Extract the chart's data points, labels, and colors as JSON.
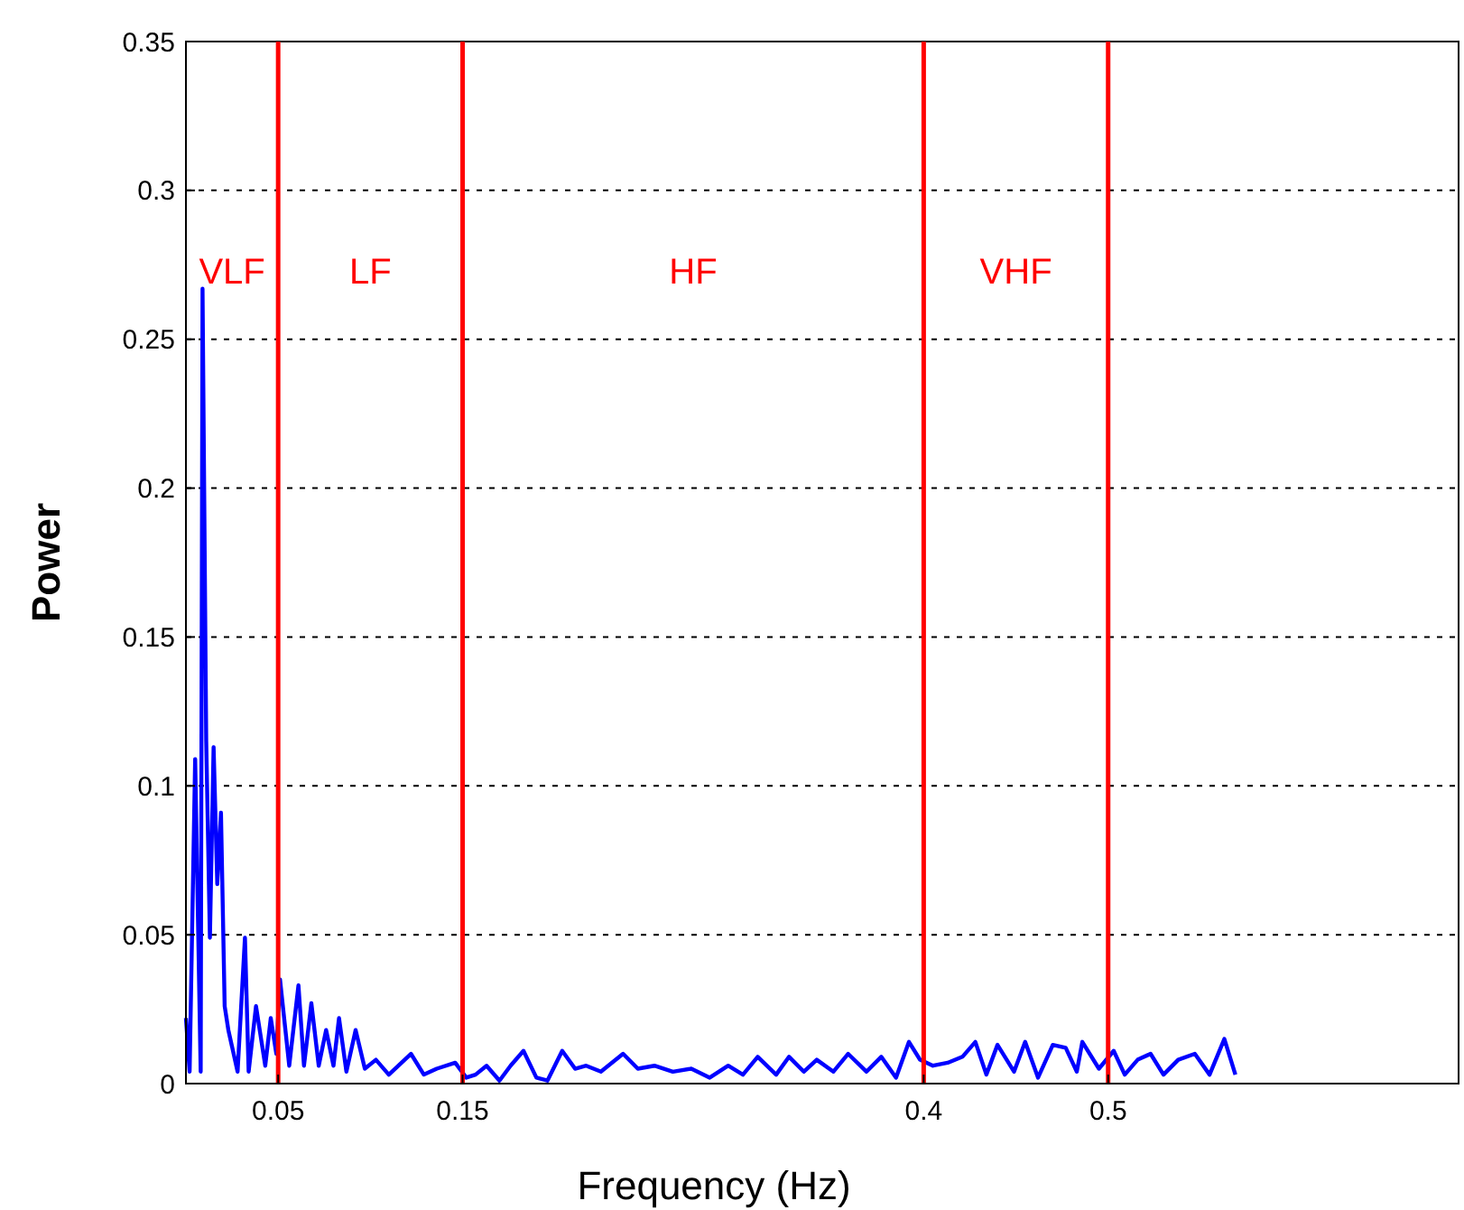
{
  "chart_data": {
    "type": "line",
    "xlabel": "Frequency (Hz)",
    "ylabel": "Power",
    "xlim": [
      0,
      0.69
    ],
    "ylim": [
      0,
      0.35
    ],
    "xticks": [
      {
        "value": 0,
        "label": null
      },
      0.05,
      0.15,
      0.4,
      0.5
    ],
    "yticks": [
      0,
      0.05,
      0.1,
      0.15,
      0.2,
      0.25,
      0.3,
      0.35
    ],
    "grid": "y",
    "line_style": "solid",
    "ref_lines": [
      {
        "axis": "x",
        "value": 0.05,
        "color": "#ff0000",
        "label": "VLF"
      },
      {
        "axis": "x",
        "value": 0.15,
        "color": "#ff0000",
        "label": "LF"
      },
      {
        "axis": "x",
        "value": 0.4,
        "color": "#ff0000",
        "label": "HF"
      },
      {
        "axis": "x",
        "value": 0.5,
        "color": "#ff0000",
        "label": "VHF"
      }
    ],
    "series": [
      {
        "color": "#0000ff",
        "x": [
          0,
          0.002,
          0.005,
          0.008,
          0.009,
          0.011,
          0.013,
          0.015,
          0.017,
          0.019,
          0.021,
          0.023,
          0.028,
          0.032,
          0.034,
          0.038,
          0.043,
          0.046,
          0.049,
          0.051,
          0.056,
          0.061,
          0.064,
          0.068,
          0.072,
          0.076,
          0.08,
          0.083,
          0.087,
          0.092,
          0.097,
          0.103,
          0.11,
          0.122,
          0.129,
          0.136,
          0.146,
          0.152,
          0.157,
          0.163,
          0.17,
          0.176,
          0.183,
          0.19,
          0.196,
          0.204,
          0.211,
          0.217,
          0.225,
          0.237,
          0.245,
          0.254,
          0.264,
          0.274,
          0.284,
          0.294,
          0.302,
          0.31,
          0.32,
          0.327,
          0.335,
          0.342,
          0.351,
          0.359,
          0.369,
          0.377,
          0.385,
          0.392,
          0.398,
          0.405,
          0.413,
          0.421,
          0.428,
          0.434,
          0.44,
          0.449,
          0.455,
          0.462,
          0.47,
          0.477,
          0.483,
          0.486,
          0.495,
          0.503,
          0.509,
          0.516,
          0.523,
          0.53,
          0.538,
          0.547,
          0.555,
          0.563,
          0.569
        ],
        "values": [
          0.022,
          0.004,
          0.109,
          0.004,
          0.267,
          0.115,
          0.049,
          0.113,
          0.067,
          0.091,
          0.026,
          0.018,
          0.004,
          0.049,
          0.004,
          0.026,
          0.006,
          0.022,
          0.01,
          0.035,
          0.006,
          0.033,
          0.006,
          0.027,
          0.006,
          0.018,
          0.006,
          0.022,
          0.004,
          0.018,
          0.005,
          0.008,
          0.003,
          0.01,
          0.003,
          0.005,
          0.007,
          0.002,
          0.003,
          0.006,
          0.001,
          0.006,
          0.011,
          0.002,
          0.001,
          0.011,
          0.005,
          0.006,
          0.004,
          0.01,
          0.005,
          0.006,
          0.004,
          0.005,
          0.002,
          0.006,
          0.003,
          0.009,
          0.003,
          0.009,
          0.004,
          0.008,
          0.004,
          0.01,
          0.004,
          0.009,
          0.002,
          0.014,
          0.008,
          0.006,
          0.007,
          0.009,
          0.014,
          0.003,
          0.013,
          0.004,
          0.014,
          0.002,
          0.013,
          0.012,
          0.004,
          0.014,
          0.005,
          0.011,
          0.003,
          0.008,
          0.01,
          0.003,
          0.008,
          0.01,
          0.003,
          0.015,
          0.003
        ]
      }
    ]
  }
}
